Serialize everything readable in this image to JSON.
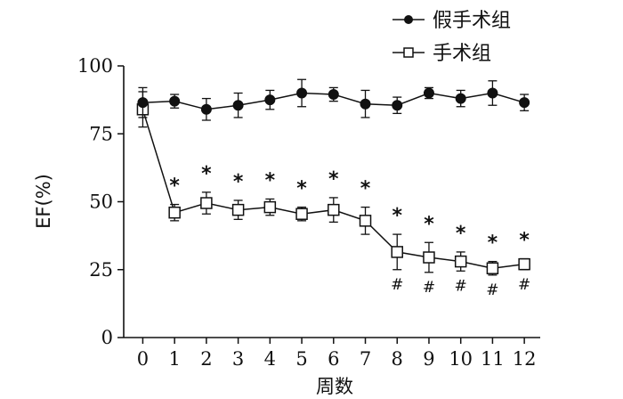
{
  "chart_data": {
    "type": "line",
    "title": "",
    "xlabel": "周数",
    "ylabel": "EF(%)",
    "x": [
      0,
      1,
      2,
      3,
      4,
      5,
      6,
      7,
      8,
      9,
      10,
      11,
      12
    ],
    "xticks": [
      "0",
      "1",
      "2",
      "3",
      "4",
      "5",
      "6",
      "7",
      "8",
      "9",
      "10",
      "11",
      "12"
    ],
    "xlim": [
      -0.6,
      12.5
    ],
    "ylim": [
      0,
      100
    ],
    "yticks": [
      "0",
      "25",
      "50",
      "75",
      "100"
    ],
    "ytick_values": [
      0,
      25,
      50,
      75,
      100
    ],
    "grid": false,
    "legend_position": "top-right",
    "series": [
      {
        "name": "假手术组",
        "marker": "filled-circle",
        "values": [
          86.5,
          87,
          84,
          85.5,
          87.5,
          90,
          89.5,
          86,
          85.5,
          90,
          88,
          90,
          86.5
        ],
        "errors": [
          5.5,
          2.5,
          4,
          4.5,
          3.5,
          5,
          2.5,
          5,
          3,
          2,
          3,
          4.5,
          3
        ]
      },
      {
        "name": "手术组",
        "marker": "open-square",
        "values": [
          84,
          46,
          49.5,
          47,
          48,
          45.5,
          47,
          43,
          31.5,
          29.5,
          28,
          25.5,
          27
        ],
        "errors": [
          6.5,
          3,
          4,
          3.5,
          3,
          2.5,
          4.5,
          5,
          6.5,
          5.5,
          3.5,
          2.5,
          2
        ]
      }
    ],
    "annotations": {
      "star_label": "*",
      "hash_label": "#",
      "star_x": [
        1,
        2,
        3,
        4,
        5,
        6,
        7,
        8,
        9,
        10,
        11,
        12
      ],
      "hash_x": [
        8,
        9,
        10,
        11,
        12
      ]
    }
  }
}
